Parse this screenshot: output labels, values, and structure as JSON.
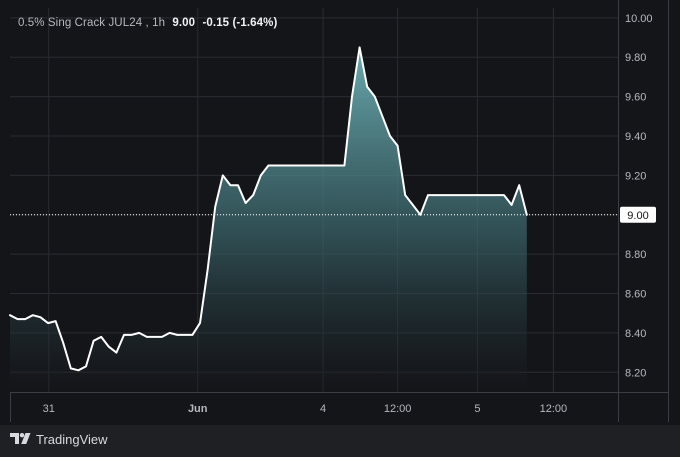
{
  "legend": {
    "symbol_label": "0.5% Sing Crack JUL24 , 1h",
    "last_price": "9.00",
    "change": "-0.15 (-1.64%)"
  },
  "branding": {
    "logo_icon": "tradingview-logo-icon",
    "name": "TradingView"
  },
  "colors": {
    "line": "#ffffff",
    "fill_top": "#6fb3b8",
    "fill_bottom": "#141519",
    "background": "#141519",
    "grid": "#2a2c33",
    "axis_text": "#b5b8bf",
    "price_tag_bg": "#ffffff",
    "price_tag_text": "#111111"
  },
  "chart_data": {
    "type": "area",
    "title": "0.5% Sing Crack JUL24 , 1h",
    "xlabel": "",
    "ylabel": "",
    "ylim": [
      8.1,
      10.05
    ],
    "xlim": [
      0,
      80
    ],
    "grid": true,
    "y_ticks": [
      8.2,
      8.4,
      8.6,
      8.8,
      9.0,
      9.2,
      9.4,
      9.6,
      9.8,
      10.0
    ],
    "y_tick_labels": [
      "8.20",
      "8.40",
      "8.60",
      "8.80",
      "9.00",
      "9.20",
      "9.40",
      "9.60",
      "9.80",
      "10.00"
    ],
    "x_ticks": [
      {
        "label": "31",
        "x": 5.1
      },
      {
        "label": "Jun",
        "x": 24.7
      },
      {
        "label": "4",
        "x": 41.2
      },
      {
        "label": "12:00",
        "x": 51.0
      },
      {
        "label": "5",
        "x": 61.5
      },
      {
        "label": "12:00",
        "x": 71.5
      }
    ],
    "current_price": 9.0,
    "current_price_label": "9.00",
    "series": [
      {
        "x": [
          0,
          1,
          2,
          3,
          4,
          5,
          6,
          7,
          8,
          9,
          10,
          11,
          12,
          13,
          14,
          15,
          16,
          17,
          18,
          19,
          20,
          21,
          22,
          23,
          24,
          25,
          26,
          27,
          28,
          29,
          30,
          31,
          32,
          33,
          34,
          35,
          36,
          37,
          38,
          39,
          40,
          41,
          42,
          43,
          44,
          45,
          46,
          47,
          48,
          49,
          50,
          51,
          52,
          53,
          54,
          55,
          56,
          57,
          58,
          59,
          60,
          61,
          62,
          63,
          64,
          65,
          66,
          67,
          68
        ],
        "values": [
          8.49,
          8.47,
          8.47,
          8.49,
          8.48,
          8.45,
          8.46,
          8.35,
          8.22,
          8.21,
          8.23,
          8.36,
          8.38,
          8.33,
          8.3,
          8.39,
          8.39,
          8.4,
          8.38,
          8.38,
          8.38,
          8.4,
          8.39,
          8.39,
          8.39,
          8.45,
          8.72,
          9.04,
          9.2,
          9.15,
          9.15,
          9.06,
          9.1,
          9.2,
          9.25,
          9.25,
          9.25,
          9.25,
          9.25,
          9.25,
          9.25,
          9.25,
          9.25,
          9.25,
          9.25,
          9.6,
          9.85,
          9.65,
          9.6,
          9.5,
          9.4,
          9.35,
          9.1,
          9.05,
          9.0,
          9.1,
          9.1,
          9.1,
          9.1,
          9.1,
          9.1,
          9.1,
          9.1,
          9.1,
          9.1,
          9.1,
          9.05,
          9.15,
          9.0
        ]
      }
    ]
  }
}
